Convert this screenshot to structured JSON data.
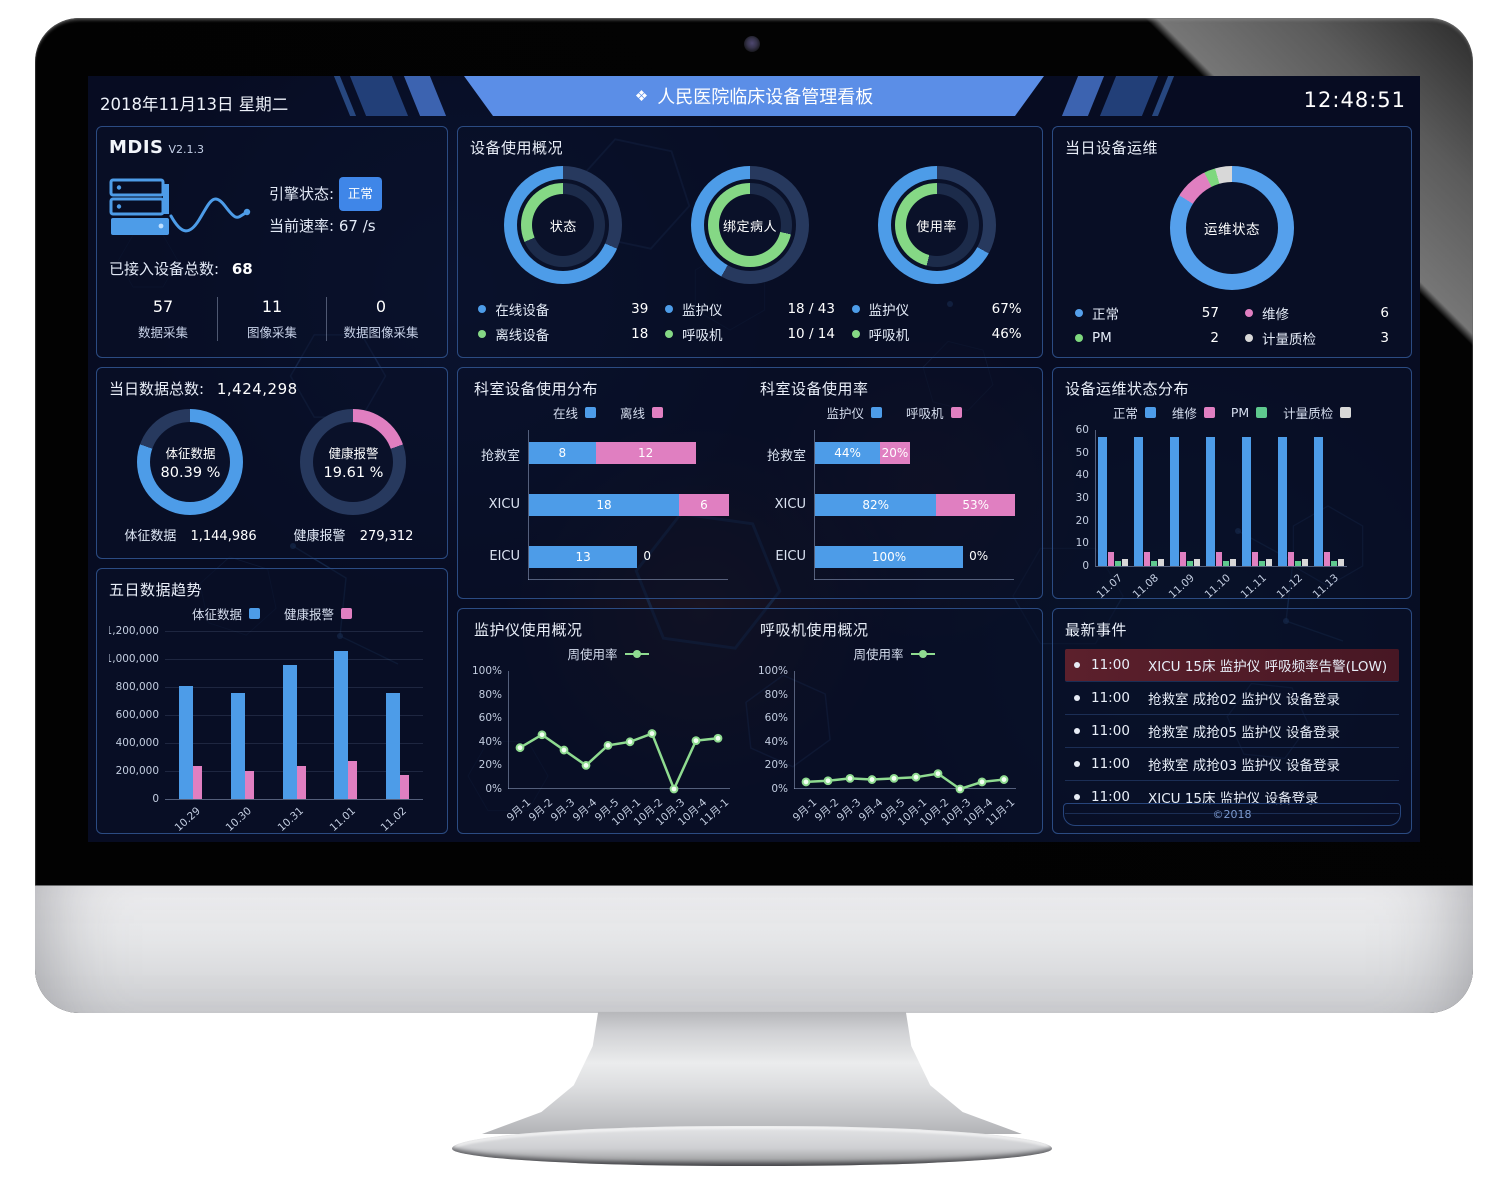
{
  "header": {
    "date": "2018年11月13日 星期二",
    "title": "人民医院临床设备管理看板",
    "title_icon": "❖",
    "time": "12:48:51"
  },
  "mdis": {
    "brand": "MDIS",
    "version": "V2.1.3",
    "engine_label": "引擎状态:",
    "engine_status": "正常",
    "rate_label": "当前速率:",
    "rate_value": "67 /s",
    "total_label": "已接入设备总数:",
    "total_value": "68",
    "stats": [
      {
        "value": "57",
        "label": "数据采集"
      },
      {
        "value": "11",
        "label": "图像采集"
      },
      {
        "value": "0",
        "label": "数据图像采集"
      }
    ]
  },
  "device_usage": {
    "title": "设备使用概况",
    "donuts": [
      {
        "center": "状态",
        "outer_pct": 68.4,
        "inner_pct": 31.6,
        "legend": [
          {
            "label": "在线设备",
            "value": "39",
            "color": "#4d9ce8"
          },
          {
            "label": "离线设备",
            "value": "18",
            "color": "#85d885"
          }
        ]
      },
      {
        "center": "绑定病人",
        "outer_pct": 41.9,
        "inner_pct": 71.4,
        "legend": [
          {
            "label": "监护仪",
            "value": "18 / 43",
            "color": "#4d9ce8"
          },
          {
            "label": "呼吸机",
            "value": "10 / 14",
            "color": "#85d885"
          }
        ]
      },
      {
        "center": "使用率",
        "outer_pct": 67,
        "inner_pct": 46,
        "legend": [
          {
            "label": "监护仪",
            "value": "67%",
            "color": "#4d9ce8"
          },
          {
            "label": "呼吸机",
            "value": "46%",
            "color": "#85d885"
          }
        ]
      }
    ]
  },
  "daily_ops": {
    "title": "当日设备运维",
    "center_label": "运维状态",
    "segments": [
      {
        "label": "正常",
        "value": 57,
        "color": "#55a0ec"
      },
      {
        "label": "维修",
        "value": 6,
        "color": "#e07fc1"
      },
      {
        "label": "PM",
        "value": 2,
        "color": "#7ed87e"
      },
      {
        "label": "计量质检",
        "value": 3,
        "color": "#d8d8d8"
      }
    ]
  },
  "daily_data": {
    "title_label": "当日数据总数:",
    "title_value": "1,424,298",
    "donuts": [
      {
        "name": "体征数据",
        "pct": 80.39,
        "pct_text": "80.39 %",
        "color": "#4d9ce8",
        "total": "1,144,986"
      },
      {
        "name": "健康报警",
        "pct": 19.61,
        "pct_text": "19.61 %",
        "color": "#e07fc1",
        "total": "279,312"
      }
    ]
  },
  "events": {
    "title": "最新事件",
    "items": [
      {
        "time": "11:00",
        "text": "XICU 15床 监护仪 呼吸频率告警(LOW)",
        "alert": true
      },
      {
        "time": "11:00",
        "text": "抢救室 成抢02 监护仪 设备登录",
        "alert": false
      },
      {
        "time": "11:00",
        "text": "抢救室 成抢05 监护仪 设备登录",
        "alert": false
      },
      {
        "time": "11:00",
        "text": "抢救室 成抢03 监护仪 设备登录",
        "alert": false
      },
      {
        "time": "11:00",
        "text": "XICU 15床 监护仪 设备登录",
        "alert": false
      }
    ],
    "footer": "©2018"
  },
  "chart_data": [
    {
      "id": "five_day_trend",
      "type": "bar",
      "title": "五日数据趋势",
      "categories": [
        "10.29",
        "10.30",
        "10.31",
        "11.01",
        "11.02"
      ],
      "series": [
        {
          "name": "体征数据",
          "color": "#4d9ce8",
          "values": [
            810000,
            760000,
            960000,
            1060000,
            760000
          ]
        },
        {
          "name": "健康报警",
          "color": "#e07fc1",
          "values": [
            235000,
            200000,
            235000,
            275000,
            175000
          ]
        }
      ],
      "ylim": [
        0,
        1200000
      ],
      "ytick_step": 200000,
      "grid": true,
      "legend_position": "top"
    },
    {
      "id": "dept_distribution",
      "type": "stacked-hbar",
      "title": "科室设备使用分布",
      "categories": [
        "抢救室",
        "XICU",
        "EICU"
      ],
      "series": [
        {
          "name": "在线",
          "color": "#4d9ce8",
          "values": [
            8,
            18,
            13
          ]
        },
        {
          "name": "离线",
          "color": "#e07fc1",
          "values": [
            12,
            6,
            0
          ]
        }
      ],
      "xmax": 24,
      "label_suffix": ""
    },
    {
      "id": "dept_usage",
      "type": "stacked-hbar",
      "title": "科室设备使用率",
      "categories": [
        "抢救室",
        "XICU",
        "EICU"
      ],
      "series": [
        {
          "name": "监护仪",
          "color": "#4d9ce8",
          "values": [
            44,
            82,
            100
          ]
        },
        {
          "name": "呼吸机",
          "color": "#e07fc1",
          "values": [
            20,
            53,
            0
          ]
        }
      ],
      "xmax": 135,
      "label_suffix": "%"
    },
    {
      "id": "ops_distribution",
      "type": "bar",
      "title": "设备运维状态分布",
      "categories": [
        "11.07",
        "11.08",
        "11.09",
        "11.10",
        "11.11",
        "11.12",
        "11.13"
      ],
      "series": [
        {
          "name": "正常",
          "color": "#4d9ce8",
          "values": [
            57,
            57,
            57,
            57,
            57,
            57,
            57
          ]
        },
        {
          "name": "维修",
          "color": "#e07fc1",
          "values": [
            6,
            6,
            6,
            6,
            6,
            6,
            6
          ]
        },
        {
          "name": "PM",
          "color": "#5ec98e",
          "values": [
            2,
            2,
            2,
            2,
            2,
            2,
            2
          ]
        },
        {
          "name": "计量质检",
          "color": "#d8d8d8",
          "values": [
            3,
            3,
            3,
            3,
            3,
            3,
            3
          ]
        }
      ],
      "ylim": [
        0,
        60
      ],
      "ytick_step": 10,
      "grid": false,
      "legend_position": "top"
    },
    {
      "id": "monitor_usage",
      "type": "line",
      "title": "监护仪使用概况",
      "legend_label": "周使用率",
      "color": "#8fdb90",
      "x": [
        "9月-1",
        "9月-2",
        "9月-3",
        "9月-4",
        "9月-5",
        "10月-1",
        "10月-2",
        "10月-3",
        "10月-4",
        "11月-1"
      ],
      "values": [
        35,
        46,
        33,
        20,
        37,
        40,
        47,
        0,
        41,
        43
      ],
      "ylim": [
        0,
        100
      ],
      "ytick_step": 20,
      "unit": "%"
    },
    {
      "id": "ventilator_usage",
      "type": "line",
      "title": "呼吸机使用概况",
      "legend_label": "周使用率",
      "color": "#8fdb90",
      "x": [
        "9月-1",
        "9月-2",
        "9月-3",
        "9月-4",
        "9月-5",
        "10月-1",
        "10月-2",
        "10月-3",
        "10月-4",
        "11月-1"
      ],
      "values": [
        6,
        7,
        9,
        8,
        9,
        10,
        13,
        0,
        6,
        8
      ],
      "ylim": [
        0,
        100
      ],
      "ytick_step": 20,
      "unit": "%"
    }
  ],
  "colors": {
    "track_outer": "#27395e",
    "track_inner": "#1c2b4a",
    "screen_bg": "#070c22",
    "accent_blue": "#4d9ce8",
    "accent_pink": "#e07fc1",
    "accent_green": "#85d885"
  }
}
